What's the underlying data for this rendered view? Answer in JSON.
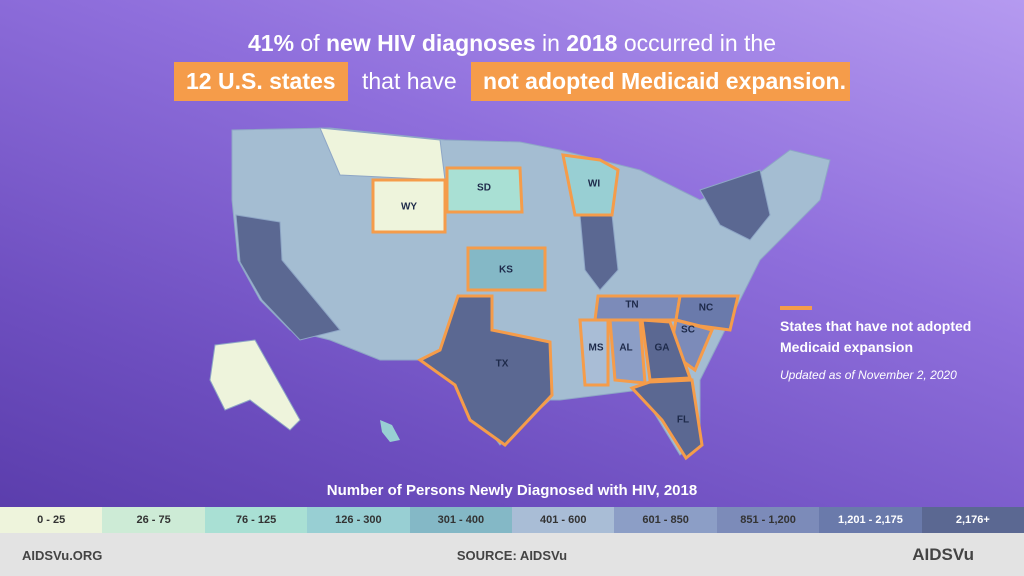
{
  "header": {
    "line1": [
      "41%",
      "of",
      "new HIV diagnoses",
      "in",
      "2018",
      "occurred in the"
    ],
    "line2": [
      "12 U.S. states",
      "that have",
      "not adopted Medicaid expansion",
      "."
    ]
  },
  "map": {
    "state_labels": [
      "WY",
      "SD",
      "KS",
      "WI",
      "TX",
      "TN",
      "NC",
      "SC",
      "MS",
      "AL",
      "GA",
      "FL"
    ]
  },
  "note": {
    "label": "States that have not adopted Medicaid expansion",
    "updated": "Updated as of November 2, 2020"
  },
  "scale": {
    "title": "Number of Persons Newly Diagnosed with HIV, 2018",
    "bins": [
      {
        "label": "0 - 25",
        "color": "#eef4dc"
      },
      {
        "label": "26 - 75",
        "color": "#cdebd6"
      },
      {
        "label": "76 - 125",
        "color": "#a9e0d4"
      },
      {
        "label": "126 - 300",
        "color": "#98cfd3"
      },
      {
        "label": "301 - 400",
        "color": "#84b8c6"
      },
      {
        "label": "401 - 600",
        "color": "#a9bdd6"
      },
      {
        "label": "601 - 850",
        "color": "#8c9ec6"
      },
      {
        "label": "851 - 1,200",
        "color": "#7c8bb9"
      },
      {
        "label": "1,201 - 2,175",
        "color": "#6a7aab"
      },
      {
        "label": "2,176+",
        "color": "#5b6892"
      }
    ]
  },
  "footer": {
    "left": "AIDSVu.ORG",
    "center": "SOURCE: AIDSVu",
    "right": "AIDSVu"
  }
}
